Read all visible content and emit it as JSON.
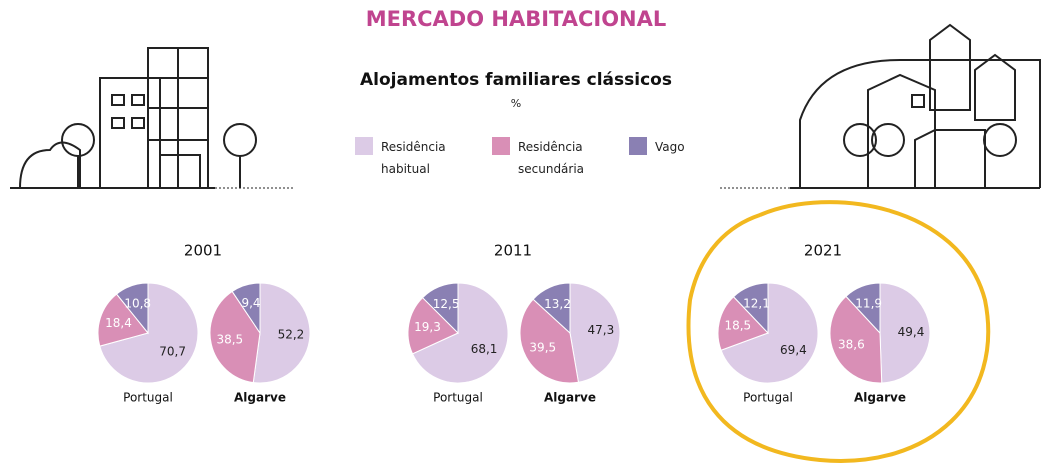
{
  "header": {
    "title": "MERCADO HABITACIONAL",
    "subtitle": "Alojamentos familiares clássicos",
    "unit": "%"
  },
  "legend": {
    "categories": [
      "Residência habitual",
      "Residência secundária",
      "Vago"
    ],
    "colors": [
      "#dccbe6",
      "#d98fb6",
      "#8a80b3"
    ]
  },
  "chart_data": [
    {
      "type": "pie",
      "title": "2001",
      "series": [
        {
          "name": "Portugal",
          "values": [
            70.7,
            18.4,
            10.8
          ],
          "value_labels": [
            "70,7",
            "18,4",
            "10,8"
          ]
        },
        {
          "name": "Algarve",
          "values": [
            52.2,
            38.5,
            9.4
          ],
          "value_labels": [
            "52,2",
            "38,5",
            "9,4"
          ]
        }
      ]
    },
    {
      "type": "pie",
      "title": "2011",
      "series": [
        {
          "name": "Portugal",
          "values": [
            68.1,
            19.3,
            12.5
          ],
          "value_labels": [
            "68,1",
            "19,3",
            "12,5"
          ]
        },
        {
          "name": "Algarve",
          "values": [
            47.3,
            39.5,
            13.2
          ],
          "value_labels": [
            "47,3",
            "39,5",
            "13,2"
          ]
        }
      ]
    },
    {
      "type": "pie",
      "title": "2021",
      "series": [
        {
          "name": "Portugal",
          "values": [
            69.4,
            18.5,
            12.1
          ],
          "value_labels": [
            "69,4",
            "18,5",
            "12,1"
          ]
        },
        {
          "name": "Algarve",
          "values": [
            49.4,
            38.6,
            11.9
          ],
          "value_labels": [
            "49,4",
            "38,6",
            "11,9"
          ]
        }
      ]
    }
  ]
}
